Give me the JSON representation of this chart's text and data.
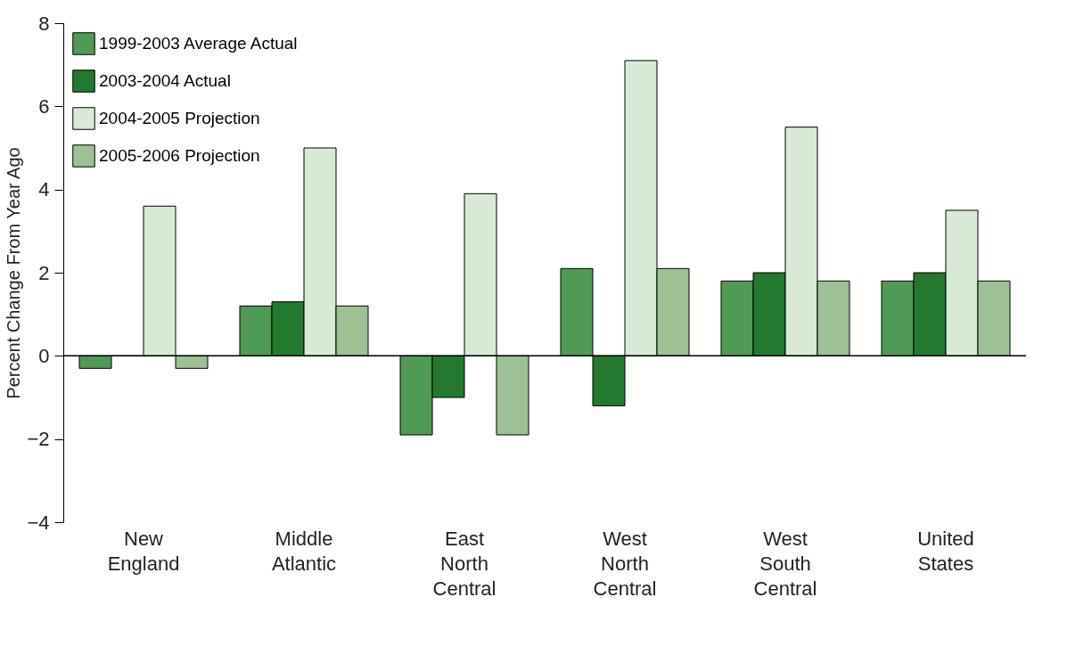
{
  "chart_data": {
    "type": "bar",
    "ylabel": "Percent Change From Year Ago",
    "categories": [
      "New England",
      "Middle Atlantic",
      "East North Central",
      "West North Central",
      "West South Central",
      "United States"
    ],
    "series": [
      {
        "name": "1999-2003 Average Actual",
        "color": "#4f9a55",
        "values": [
          -0.3,
          1.2,
          -1.9,
          2.1,
          1.8,
          1.8
        ]
      },
      {
        "name": "2003-2004 Actual",
        "color": "#237a2f",
        "values": [
          0.0,
          1.3,
          -1.0,
          -1.2,
          2.0,
          2.0
        ]
      },
      {
        "name": "2004-2005 Projection",
        "color": "#d7ead5",
        "values": [
          3.6,
          5.0,
          3.9,
          7.1,
          5.5,
          3.5
        ]
      },
      {
        "name": "2005-2006 Projection",
        "color": "#9dc095",
        "values": [
          -0.3,
          1.2,
          -1.9,
          2.1,
          1.8,
          1.8
        ]
      }
    ],
    "ylim": [
      -4,
      8
    ],
    "yticks": [
      -4,
      -2,
      0,
      2,
      4,
      6,
      8
    ],
    "grid": false,
    "legend": "top left",
    "ref_lines": [
      {
        "axis": "y",
        "value": 0,
        "color": "#000000"
      }
    ]
  }
}
